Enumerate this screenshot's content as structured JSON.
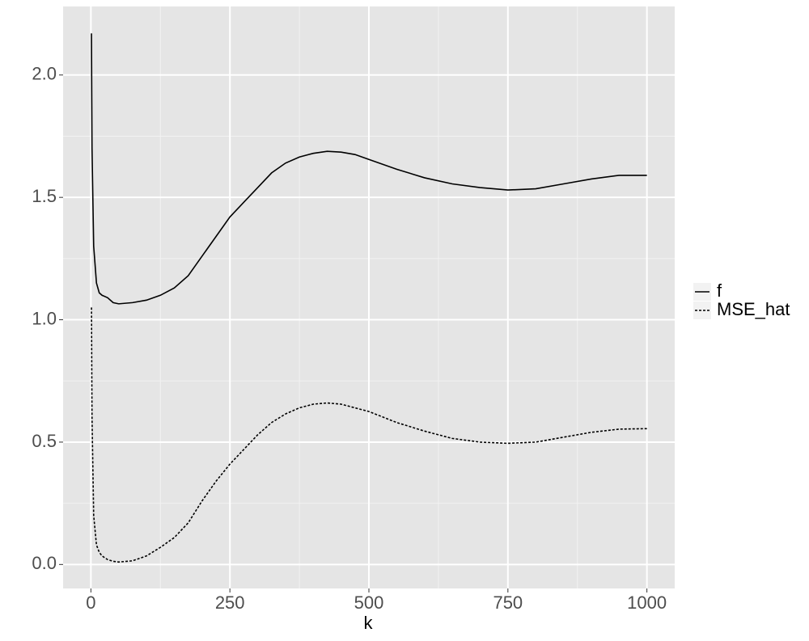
{
  "chart_data": {
    "type": "line",
    "x_label": "k",
    "x": [
      1,
      2,
      5,
      10,
      15,
      20,
      30,
      40,
      50,
      75,
      100,
      125,
      150,
      175,
      200,
      225,
      250,
      275,
      300,
      325,
      350,
      375,
      400,
      425,
      450,
      475,
      500,
      550,
      600,
      650,
      700,
      750,
      800,
      850,
      900,
      950,
      1000
    ],
    "series": [
      {
        "name": "f",
        "color": "#000000",
        "dash": "solid",
        "values": [
          2.17,
          1.7,
          1.3,
          1.15,
          1.11,
          1.1,
          1.09,
          1.07,
          1.065,
          1.07,
          1.08,
          1.1,
          1.13,
          1.18,
          1.26,
          1.34,
          1.42,
          1.48,
          1.54,
          1.6,
          1.64,
          1.665,
          1.68,
          1.688,
          1.685,
          1.675,
          1.655,
          1.615,
          1.58,
          1.555,
          1.54,
          1.53,
          1.535,
          1.555,
          1.575,
          1.59,
          1.59
        ]
      },
      {
        "name": "MSE_hat",
        "color": "#000000",
        "dash": "dotted",
        "values": [
          1.05,
          0.6,
          0.2,
          0.08,
          0.05,
          0.035,
          0.02,
          0.013,
          0.01,
          0.015,
          0.035,
          0.07,
          0.11,
          0.17,
          0.26,
          0.34,
          0.41,
          0.47,
          0.53,
          0.58,
          0.615,
          0.64,
          0.655,
          0.66,
          0.655,
          0.64,
          0.625,
          0.58,
          0.545,
          0.515,
          0.5,
          0.495,
          0.5,
          0.52,
          0.54,
          0.553,
          0.555
        ]
      }
    ],
    "xlim": [
      -50,
      1050
    ],
    "ylim": [
      -0.098,
      2.28
    ],
    "xticks": [
      0,
      250,
      500,
      750,
      1000
    ],
    "yticks": [
      {
        "value": 0,
        "label": "0.0"
      },
      {
        "value": 0.5,
        "label": "0.5"
      },
      {
        "value": 1,
        "label": "1.0"
      },
      {
        "value": 1.5,
        "label": "1.5"
      },
      {
        "value": 2,
        "label": "2.0"
      }
    ],
    "x_minor_ticks": [
      125,
      375,
      625,
      875
    ],
    "y_minor_ticks": [
      0.25,
      0.75,
      1.25,
      1.75
    ],
    "grid": true,
    "legend_position": "right"
  }
}
